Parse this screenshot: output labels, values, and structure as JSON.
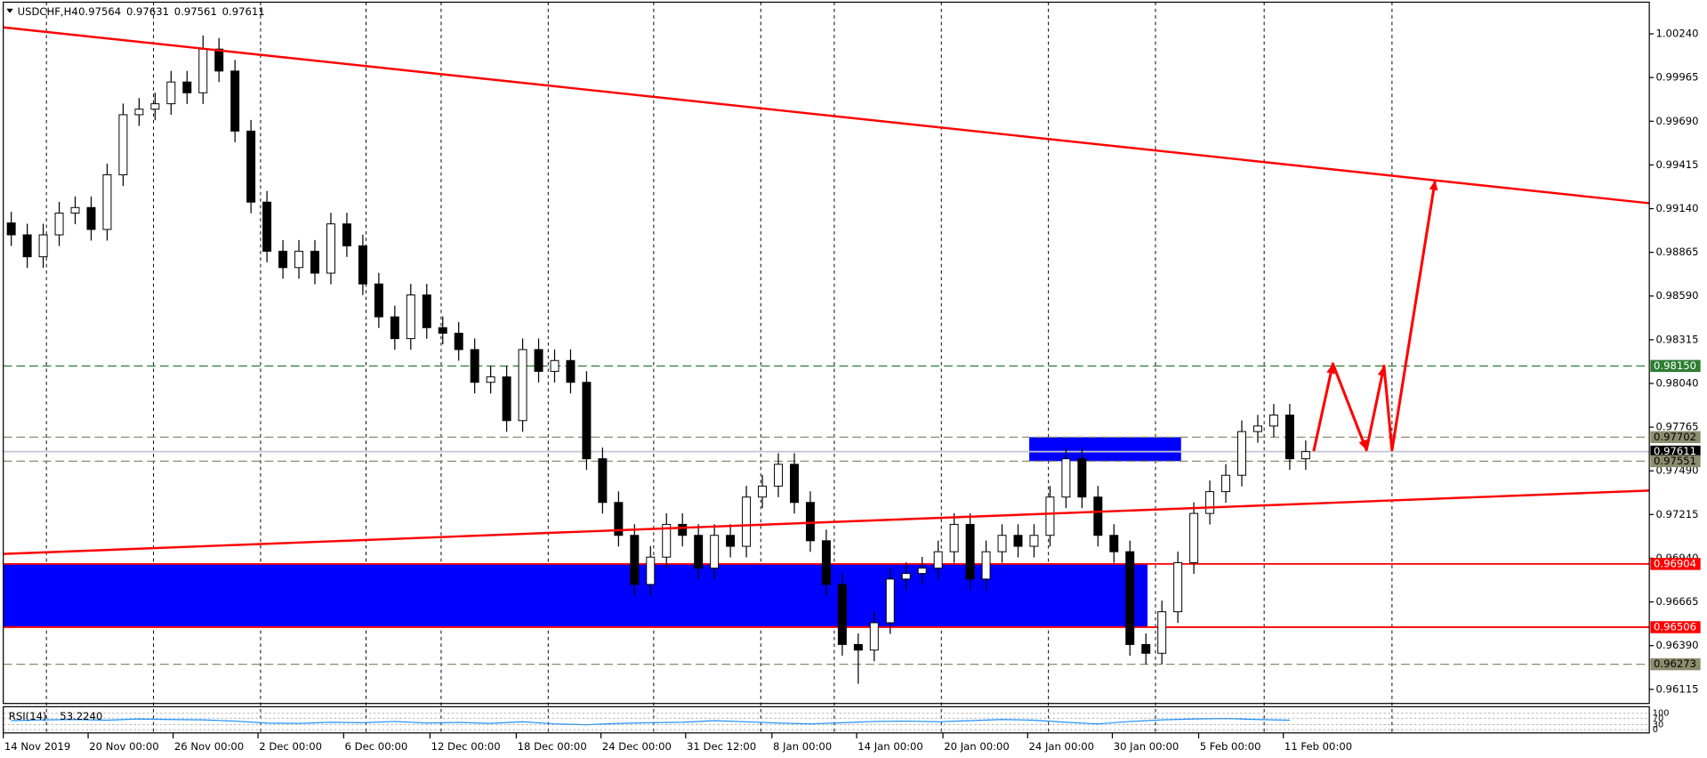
{
  "chart_data": {
    "type": "candlestick",
    "title": "USDCHF,H4",
    "quote": [
      0.97564,
      0.97631,
      0.97561,
      0.97611
    ],
    "xlim": [
      0,
      103
    ],
    "ylim": [
      0.96026,
      1.00453
    ],
    "yticks": [
      {
        "value": 1.0024,
        "label": "1.00240"
      },
      {
        "value": 0.99965,
        "label": "0.99965"
      },
      {
        "value": 0.9969,
        "label": "0.99690"
      },
      {
        "value": 0.99415,
        "label": "0.99415"
      },
      {
        "value": 0.9914,
        "label": "0.99140"
      },
      {
        "value": 0.98865,
        "label": "0.98865"
      },
      {
        "value": 0.9859,
        "label": "0.98590"
      },
      {
        "value": 0.98315,
        "label": "0.98315"
      },
      {
        "value": 0.9804,
        "label": "0.98040"
      },
      {
        "value": 0.97765,
        "label": "0.97765"
      },
      {
        "value": 0.9749,
        "label": "0.97490"
      },
      {
        "value": 0.97215,
        "label": "0.97215"
      },
      {
        "value": 0.9694,
        "label": "0.96940"
      },
      {
        "value": 0.96665,
        "label": "0.96665"
      },
      {
        "value": 0.9639,
        "label": "0.96390"
      },
      {
        "value": 0.96115,
        "label": "0.96115"
      }
    ],
    "xticks": [
      {
        "value": 0,
        "label": "14 Nov 2019"
      },
      {
        "value": 5.31,
        "label": "20 Nov 00:00"
      },
      {
        "value": 10.63,
        "label": "26 Nov 00:00"
      },
      {
        "value": 15.94,
        "label": "2 Dec 00:00"
      },
      {
        "value": 21.3,
        "label": "6 Dec 00:00"
      },
      {
        "value": 26.7,
        "label": "12 Dec 00:00"
      },
      {
        "value": 32.1,
        "label": "18 Dec 00:00"
      },
      {
        "value": 37.4,
        "label": "24 Dec 00:00"
      },
      {
        "value": 42.7,
        "label": "31 Dec 12:00"
      },
      {
        "value": 48.1,
        "label": "8 Jan 00:00"
      },
      {
        "value": 53.4,
        "label": "14 Jan 00:00"
      },
      {
        "value": 58.8,
        "label": "20 Jan 00:00"
      },
      {
        "value": 64.1,
        "label": "24 Jan 00:00"
      },
      {
        "value": 69.4,
        "label": "30 Jan 00:00"
      },
      {
        "value": 74.8,
        "label": "5 Feb 00:00"
      },
      {
        "value": 80.1,
        "label": "11 Feb 00:00"
      }
    ],
    "vgrid": [
      2.7,
      9.4,
      16.1,
      22.7,
      27.4,
      34.1,
      40.7,
      47.4,
      52.0,
      58.7,
      65.4,
      72.1,
      78.9,
      86.9
    ],
    "open": [
      0.9905,
      0.98975,
      0.98837,
      0.98975,
      0.99112,
      0.99147,
      0.99009,
      0.99353,
      0.99731,
      0.99766,
      0.998,
      0.99937,
      0.99869,
      1.00144,
      1.00006,
      0.99628,
      0.99181,
      0.98872,
      0.98769,
      0.98872,
      0.98734,
      0.99044,
      0.98906,
      0.98666,
      0.98459,
      0.98322,
      0.98597,
      0.98391,
      0.98356,
      0.98253,
      0.98047,
      0.98081,
      0.97806,
      0.98253,
      0.98116,
      0.98184,
      0.98047,
      0.97566,
      0.97291,
      0.97084,
      0.96775,
      0.96947,
      0.97153,
      0.97084,
      0.96878,
      0.97084,
      0.97015,
      0.97325,
      0.97394,
      0.97531,
      0.97291,
      0.9705,
      0.96775,
      0.96397,
      0.96362,
      0.96534,
      0.96809,
      0.96844,
      0.96878,
      0.96981,
      0.97153,
      0.96809,
      0.96981,
      0.97084,
      0.97015,
      0.97084,
      0.97325,
      0.97566,
      0.97325,
      0.97084,
      0.96981,
      0.96397,
      0.96342,
      0.96603,
      0.96912,
      0.97222,
      0.97359,
      0.97462,
      0.97737,
      0.97772,
      0.97841,
      0.97566
    ],
    "high": [
      0.9912,
      0.99045,
      0.99045,
      0.99182,
      0.99217,
      0.99217,
      0.99423,
      0.99801,
      0.99836,
      0.9987,
      1.00007,
      1.00007,
      1.0023,
      1.00214,
      1.00076,
      0.99698,
      0.99251,
      0.98942,
      0.98942,
      0.98942,
      0.99114,
      0.99114,
      0.98976,
      0.98736,
      0.98529,
      0.98667,
      0.98667,
      0.98461,
      0.98426,
      0.98323,
      0.98151,
      0.98151,
      0.98323,
      0.98323,
      0.98254,
      0.98254,
      0.98117,
      0.97636,
      0.97361,
      0.97154,
      0.97017,
      0.97223,
      0.97223,
      0.97154,
      0.97154,
      0.97154,
      0.97395,
      0.97464,
      0.97601,
      0.97601,
      0.97361,
      0.9712,
      0.96845,
      0.96467,
      0.96604,
      0.96879,
      0.96914,
      0.96948,
      0.97051,
      0.97223,
      0.97223,
      0.97051,
      0.97154,
      0.97154,
      0.97154,
      0.97395,
      0.97636,
      0.97636,
      0.97395,
      0.97154,
      0.97051,
      0.96467,
      0.96673,
      0.96982,
      0.97292,
      0.97429,
      0.97532,
      0.97807,
      0.97842,
      0.97911,
      0.97911,
      0.97681
    ],
    "low": [
      0.98905,
      0.98767,
      0.98767,
      0.98905,
      0.99042,
      0.98939,
      0.98939,
      0.99283,
      0.99661,
      0.99696,
      0.9973,
      0.99799,
      0.99799,
      0.99936,
      0.99558,
      0.99111,
      0.98802,
      0.98699,
      0.98699,
      0.98664,
      0.98664,
      0.98836,
      0.98596,
      0.98389,
      0.98252,
      0.98252,
      0.98321,
      0.98286,
      0.98183,
      0.97977,
      0.97977,
      0.97736,
      0.97736,
      0.98046,
      0.98046,
      0.97977,
      0.97496,
      0.97221,
      0.97014,
      0.96705,
      0.96705,
      0.96877,
      0.97014,
      0.96808,
      0.96808,
      0.96945,
      0.96945,
      0.97255,
      0.97324,
      0.97221,
      0.9698,
      0.96705,
      0.96327,
      0.9615,
      0.96292,
      0.96464,
      0.96739,
      0.96774,
      0.96808,
      0.96911,
      0.96739,
      0.96739,
      0.96911,
      0.96945,
      0.96945,
      0.97014,
      0.97255,
      0.97255,
      0.97014,
      0.96911,
      0.96327,
      0.96272,
      0.96272,
      0.96533,
      0.96842,
      0.97152,
      0.97289,
      0.97392,
      0.97667,
      0.97702,
      0.97496,
      0.97496
    ],
    "close": [
      0.98975,
      0.98837,
      0.98975,
      0.99112,
      0.99147,
      0.99009,
      0.99353,
      0.99731,
      0.99766,
      0.998,
      0.99937,
      0.99869,
      1.00144,
      1.00006,
      0.99628,
      0.99181,
      0.98872,
      0.98769,
      0.98872,
      0.98734,
      0.99044,
      0.98906,
      0.98666,
      0.98459,
      0.98322,
      0.98597,
      0.98391,
      0.98356,
      0.98253,
      0.98047,
      0.98081,
      0.97806,
      0.98253,
      0.98116,
      0.98184,
      0.98047,
      0.97566,
      0.97291,
      0.97084,
      0.96775,
      0.96947,
      0.97153,
      0.97084,
      0.96878,
      0.97084,
      0.97015,
      0.97325,
      0.97394,
      0.97531,
      0.97291,
      0.9705,
      0.96775,
      0.96397,
      0.96362,
      0.96534,
      0.96809,
      0.96844,
      0.96878,
      0.96981,
      0.97153,
      0.96809,
      0.96981,
      0.97084,
      0.97015,
      0.97084,
      0.97325,
      0.97566,
      0.97325,
      0.97084,
      0.96981,
      0.96397,
      0.96342,
      0.96603,
      0.96912,
      0.97222,
      0.97359,
      0.97462,
      0.97737,
      0.97772,
      0.97841,
      0.97566,
      0.97611
    ],
    "levels": [
      {
        "value": 0.9815,
        "label": "0.98150",
        "color": "#2e7d32",
        "label_color": "#ffffff",
        "style": "dashed"
      },
      {
        "value": 0.97702,
        "label": "0.97702",
        "color": "#8c8c6e",
        "label_color": "#000000",
        "style": "dashed"
      },
      {
        "value": 0.97611,
        "label": "0.97611",
        "color": "#c4c4d4",
        "label_color": "#ffffff",
        "style": "solid"
      },
      {
        "value": 0.97551,
        "label": "0.97551",
        "color": "#8c8c6e",
        "label_color": "#000000",
        "style": "dashed"
      },
      {
        "value": 0.96904,
        "label": "0.96904",
        "color": "#ff0000",
        "label_color": "#ffffff",
        "style": "solid"
      },
      {
        "value": 0.96506,
        "label": "0.96506",
        "color": "#ff0000",
        "label_color": "#ffffff",
        "style": "solid"
      },
      {
        "value": 0.96273,
        "label": "0.96273",
        "color": "#8c8c6e",
        "label_color": "#000000",
        "style": "dashed"
      }
    ],
    "zones": [
      {
        "x": [
          0,
          71.6
        ],
        "y": [
          0.96506,
          0.96904
        ],
        "color": "#0000ff"
      },
      {
        "x": [
          64.2,
          73.7
        ],
        "y": [
          0.97551,
          0.97702
        ],
        "color": "#0000ff"
      }
    ],
    "trendlines": [
      {
        "x": [
          0,
          103
        ],
        "y": [
          1.00281,
          0.99174
        ],
        "color": "#ff0000"
      },
      {
        "x": [
          0,
          103
        ],
        "y": [
          0.96967,
          0.97366
        ],
        "color": "#ff0000"
      }
    ],
    "projection": {
      "x": [
        82.0,
        83.2,
        85.3,
        86.4,
        86.9,
        89.6
      ],
      "y": [
        0.97614,
        0.98164,
        0.97621,
        0.9815,
        0.97621,
        0.99319
      ],
      "color": "#ff0000"
    },
    "indicator": {
      "title": "RSI(14)",
      "value": 53.224,
      "value_label": "53.2240",
      "color": "#1e90ff",
      "ylim": [
        0,
        100
      ],
      "yticks": [
        100,
        70,
        30,
        0
      ],
      "values": [
        55,
        60,
        62,
        58,
        65,
        62,
        60,
        52,
        40,
        38,
        45,
        42,
        50,
        40,
        44,
        38,
        48,
        35,
        30,
        38,
        42,
        45,
        55,
        48,
        40,
        35,
        42,
        50,
        52,
        48,
        55,
        62,
        58,
        45,
        35,
        50,
        60,
        65,
        68,
        62,
        58
      ]
    }
  }
}
